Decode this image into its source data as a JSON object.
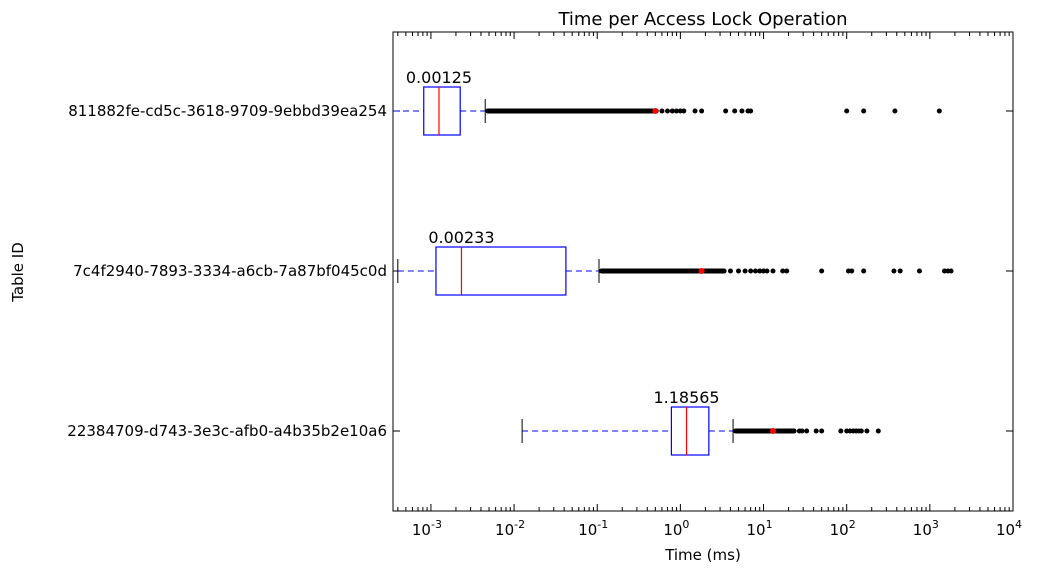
{
  "chart_data": {
    "type": "boxplot",
    "title": "Time per Access Lock Operation",
    "xlabel": "Time (ms)",
    "ylabel": "Table ID",
    "x_scale": "log",
    "xlim": [
      0.00035,
      10000
    ],
    "x_ticks": [
      {
        "value": 0.001,
        "base": "10",
        "exp": "-3"
      },
      {
        "value": 0.01,
        "base": "10",
        "exp": "-2"
      },
      {
        "value": 0.1,
        "base": "10",
        "exp": "-1"
      },
      {
        "value": 1,
        "base": "10",
        "exp": "0"
      },
      {
        "value": 10,
        "base": "10",
        "exp": "1"
      },
      {
        "value": 100,
        "base": "10",
        "exp": "2"
      },
      {
        "value": 1000,
        "base": "10",
        "exp": "3"
      },
      {
        "value": 10000,
        "base": "10",
        "exp": "4"
      }
    ],
    "colors": {
      "box": "#0000ff",
      "median": "#ff0000",
      "mean": "#ff0000",
      "whisker": "#0000ff",
      "cap": "#000000",
      "flier": "#000000"
    },
    "boxes": [
      {
        "label": "811882fe-cd5c-3618-9709-9ebbd39ea254",
        "median_label": "0.00125",
        "whisker_low": 0.00035,
        "q1": 0.00082,
        "median": 0.00125,
        "q3": 0.00225,
        "whisker_high": 0.0045,
        "mean": 0.5,
        "flier_band": [
          0.0045,
          0.55
        ],
        "fliers": [
          0.6,
          0.7,
          0.8,
          0.9,
          1.0,
          1.1,
          1.5,
          1.8,
          3.5,
          4.5,
          5.5,
          6.5,
          7.0,
          100,
          160,
          380,
          1300
        ]
      },
      {
        "label": "7c4f2940-7893-3334-a6cb-7a87bf045c0d",
        "median_label": "0.00233",
        "whisker_low": 0.0004,
        "q1": 0.00115,
        "median": 0.00233,
        "q3": 0.042,
        "whisker_high": 0.105,
        "mean": 1.8,
        "flier_band": [
          0.105,
          3.6
        ],
        "fliers": [
          4,
          5,
          6,
          7,
          8,
          9,
          10,
          11,
          13,
          17,
          19,
          50,
          105,
          115,
          160,
          370,
          440,
          750,
          1500,
          1650,
          1800
        ]
      },
      {
        "label": "22384709-d743-3e3c-afb0-a4b35b2e10a6",
        "median_label": "1.18565",
        "whisker_low": 0.0125,
        "q1": 0.78,
        "median": 1.18565,
        "q3": 2.2,
        "whisker_high": 4.3,
        "mean": 13,
        "flier_band": [
          4.3,
          25
        ],
        "fliers": [
          27,
          29,
          33,
          43,
          50,
          85,
          100,
          110,
          120,
          130,
          140,
          150,
          175,
          240
        ]
      }
    ]
  }
}
